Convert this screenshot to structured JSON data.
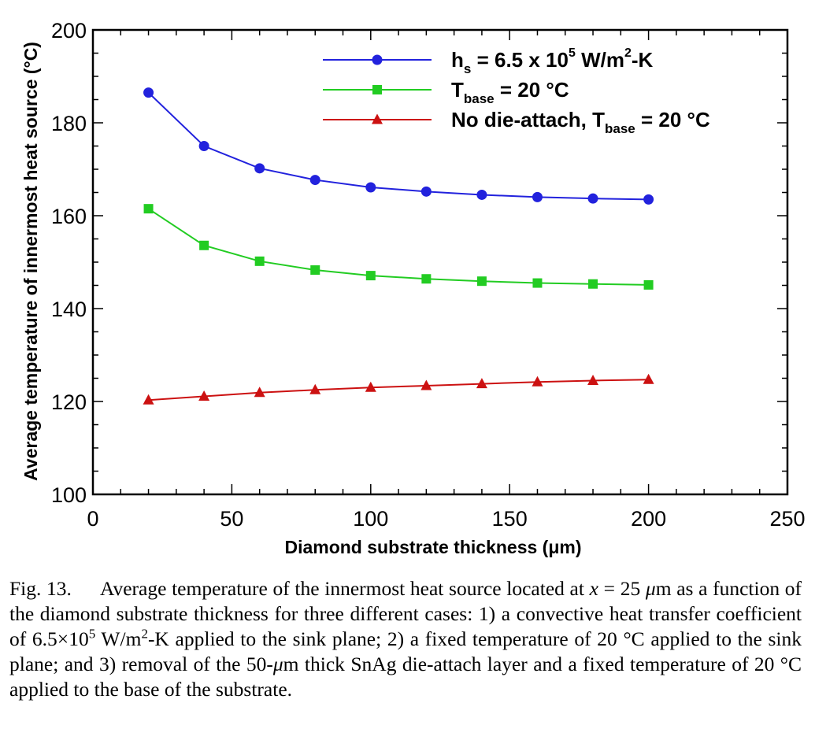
{
  "chart_data": {
    "type": "line",
    "xlabel": "Diamond substrate thickness (μm)",
    "ylabel": "Average temperature of innermost heat source (°C)",
    "xlim": [
      0,
      250
    ],
    "ylim": [
      100,
      200
    ],
    "xticks": [
      0,
      50,
      100,
      150,
      200,
      250
    ],
    "yticks": [
      100,
      120,
      140,
      160,
      180,
      200
    ],
    "grid": false,
    "legend_position": "top-right",
    "x": [
      20,
      40,
      60,
      80,
      100,
      120,
      140,
      160,
      180,
      200
    ],
    "series": [
      {
        "name": "h_s = 6.5 x 10^5 W/m^2-K",
        "legend": {
          "main": "h",
          "sub": "s",
          "mid": " = 6.5 x 10",
          "sup": "5",
          "mid2": " W/m",
          "sup2": "2",
          "end": "-K"
        },
        "color": "#2222dd",
        "marker": "circle",
        "values": [
          186.5,
          175.0,
          170.2,
          167.7,
          166.1,
          165.2,
          164.5,
          164.0,
          163.7,
          163.5
        ]
      },
      {
        "name": "T_base = 20 °C",
        "legend": {
          "main": "T",
          "sub": "base",
          "end": " = 20 °C"
        },
        "color": "#22cc22",
        "marker": "square",
        "values": [
          161.5,
          153.6,
          150.2,
          148.3,
          147.1,
          146.4,
          145.9,
          145.5,
          145.3,
          145.1
        ]
      },
      {
        "name": "No die-attach, T_base = 20 °C",
        "legend": {
          "main": "No die-attach, T",
          "sub": "base",
          "end": " = 20 °C"
        },
        "color": "#cc1111",
        "marker": "triangle",
        "values": [
          120.3,
          121.1,
          121.9,
          122.5,
          123.0,
          123.4,
          123.8,
          124.2,
          124.5,
          124.7
        ]
      }
    ]
  },
  "caption": {
    "label": "Fig. 13.",
    "text_1": "Average temperature of the innermost heat source located at",
    "x_symbol": "x",
    "text_2": " = 25 ",
    "mu": "μ",
    "text_3": "m as a function of the diamond substrate thickness for three different cases: 1) a convective heat transfer coefficient of 6.5×10",
    "sup_1": "5",
    "text_4": " W/m",
    "sup_2": "2",
    "text_5": "-K applied to the sink plane; 2) a fixed temperature of 20 °C applied to the sink plane; and 3) removal of the 50-",
    "mu_2": "μ",
    "text_6": "m thick SnAg die-attach layer and a fixed temperature of 20 °C applied to the base of the substrate."
  }
}
